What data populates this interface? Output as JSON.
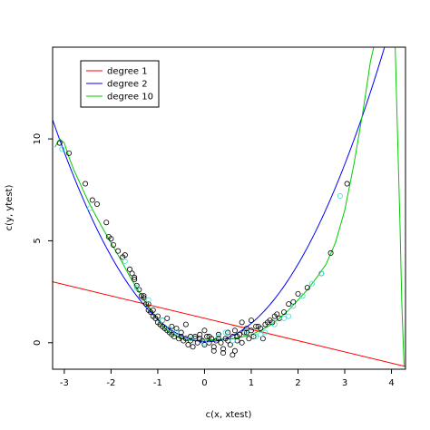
{
  "chart_data": {
    "type": "scatter",
    "title": "",
    "xlabel": "c(x, xtest)",
    "ylabel": "c(y, ytest)",
    "xlim": [
      -3.25,
      4.3
    ],
    "ylim": [
      -1.3,
      14.5
    ],
    "xticks": [
      -3,
      -2,
      -1,
      0,
      1,
      2,
      3,
      4
    ],
    "yticks": [
      0,
      5,
      10
    ],
    "grid": false,
    "legend_position": "top-left",
    "legend": [
      {
        "label": "degree 1",
        "color": "#ff0000"
      },
      {
        "label": "degree 2",
        "color": "#0000ff"
      },
      {
        "label": "degree 10",
        "color": "#00cc00"
      }
    ],
    "fits": {
      "degree1": {
        "intercept": 1.2,
        "slope": -0.55
      },
      "degree2": {
        "coefficients": [
          0.05,
          -0.1,
          1.0
        ]
      },
      "degree10": {
        "x": [
          -3.2,
          -3.1,
          -3.0,
          -2.9,
          -2.8,
          -2.7,
          -2.6,
          -2.5,
          -2.4,
          -2.2,
          -2.0,
          -1.8,
          -1.6,
          -1.4,
          -1.2,
          -1.0,
          -0.8,
          -0.6,
          -0.4,
          -0.2,
          0.0,
          0.2,
          0.4,
          0.6,
          0.8,
          1.0,
          1.2,
          1.4,
          1.6,
          1.8,
          2.0,
          2.2,
          2.4,
          2.6,
          2.8,
          3.0,
          3.2,
          3.4,
          3.55,
          3.62,
          4.08,
          4.12,
          4.18,
          4.22,
          4.27
        ],
        "y": [
          9.6,
          10.0,
          9.8,
          9.1,
          8.5,
          8.0,
          7.5,
          7.0,
          6.55,
          5.7,
          4.9,
          4.1,
          3.25,
          2.5,
          1.75,
          1.1,
          0.6,
          0.3,
          0.15,
          0.1,
          0.12,
          0.15,
          0.18,
          0.2,
          0.28,
          0.4,
          0.6,
          0.85,
          1.2,
          1.6,
          2.1,
          2.6,
          3.2,
          3.85,
          4.9,
          6.5,
          8.8,
          11.5,
          13.8,
          14.5,
          14.5,
          11.0,
          6.0,
          2.0,
          -1.2
        ]
      }
    },
    "train": {
      "x": [
        -3.1,
        -2.9,
        -2.55,
        -2.4,
        -2.3,
        -2.1,
        -2.05,
        -2.0,
        -1.95,
        -1.85,
        -1.75,
        -1.7,
        -1.6,
        -1.55,
        -1.5,
        -1.45,
        -1.4,
        -1.35,
        -1.3,
        -1.25,
        -1.2,
        -1.15,
        -1.1,
        -1.05,
        -1.0,
        -0.95,
        -0.9,
        -0.85,
        -0.8,
        -0.75,
        -0.7,
        -0.65,
        -0.6,
        -0.55,
        -0.5,
        -0.45,
        -0.4,
        -0.35,
        -0.3,
        -0.25,
        -0.2,
        -0.15,
        -0.1,
        -0.05,
        0.0,
        0.05,
        0.1,
        0.15,
        0.2,
        0.25,
        0.3,
        0.35,
        0.4,
        0.45,
        0.5,
        0.55,
        0.6,
        0.65,
        0.7,
        0.75,
        0.8,
        0.85,
        0.9,
        0.95,
        1.0,
        1.05,
        1.1,
        1.2,
        1.3,
        1.4,
        1.5,
        1.6,
        1.7,
        1.8,
        1.9,
        2.0,
        2.2,
        2.5,
        2.7,
        3.05,
        -1.3,
        -1.1,
        -0.9,
        -0.7,
        -0.5,
        -0.3,
        -0.1,
        0.1,
        0.3,
        0.5,
        0.7,
        0.9,
        1.15,
        1.35,
        1.55,
        -1.5,
        -1.0,
        -0.6,
        -0.2,
        0.2,
        0.6,
        1.0,
        1.45,
        -0.8,
        -0.4,
        0.0,
        0.4,
        0.8,
        1.25,
        -1.2,
        0.65
      ],
      "y": [
        9.8,
        9.3,
        7.8,
        7.0,
        6.8,
        5.9,
        5.2,
        5.1,
        4.8,
        4.5,
        4.2,
        4.3,
        3.6,
        3.4,
        3.1,
        2.8,
        2.6,
        2.3,
        2.2,
        1.9,
        1.6,
        1.5,
        1.3,
        1.2,
        1.0,
        0.9,
        0.8,
        0.7,
        0.6,
        0.5,
        0.4,
        0.3,
        0.5,
        0.2,
        0.3,
        0.1,
        0.2,
        -0.1,
        0.1,
        -0.2,
        0.3,
        0.0,
        0.2,
        0.1,
        -0.1,
        0.3,
        0.0,
        0.2,
        -0.2,
        0.1,
        0.4,
        0.0,
        -0.3,
        0.2,
        0.5,
        -0.1,
        0.3,
        0.6,
        0.1,
        0.4,
        0.0,
        0.5,
        0.7,
        0.2,
        0.6,
        0.3,
        0.8,
        0.7,
        0.9,
        1.1,
        1.3,
        1.2,
        1.5,
        1.9,
        2.0,
        2.4,
        2.7,
        3.4,
        4.4,
        7.8,
        2.3,
        1.6,
        1.1,
        0.8,
        0.5,
        0.3,
        0.4,
        0.3,
        0.2,
        0.1,
        0.3,
        0.5,
        0.8,
        1.0,
        1.4,
        3.2,
        1.3,
        0.7,
        0.2,
        -0.4,
        -0.6,
        1.1,
        1.0,
        1.2,
        0.9,
        0.6,
        -0.5,
        1.0,
        0.2,
        1.9,
        -0.4
      ]
    },
    "test": {
      "x": [
        -3.05,
        -2.45,
        -1.7,
        -1.45,
        -1.2,
        -0.9,
        -0.6,
        -0.3,
        0.0,
        0.3,
        0.6,
        0.9,
        1.1,
        1.3,
        1.5,
        1.7,
        1.9,
        2.1,
        2.3,
        2.5,
        2.9,
        -0.75,
        0.45,
        1.2,
        1.8
      ],
      "y": [
        9.5,
        6.6,
        4.0,
        2.7,
        2.1,
        1.1,
        0.5,
        0.2,
        0.0,
        0.3,
        0.1,
        0.6,
        0.3,
        0.5,
        0.9,
        1.2,
        1.8,
        2.3,
        2.9,
        3.4,
        7.2,
        0.7,
        0.5,
        0.4,
        1.3
      ]
    }
  }
}
